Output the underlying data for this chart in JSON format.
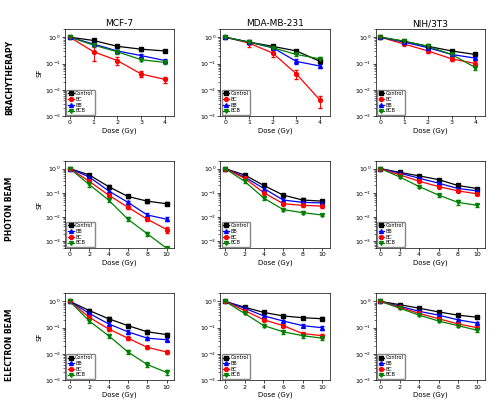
{
  "col_titles": [
    "MCF-7",
    "MDA-MB-231",
    "NIH/3T3"
  ],
  "row_titles": [
    "BRACHYTHERAPY",
    "PHOTON BEAM",
    "ELECTRON BEAM"
  ],
  "ylabel": "SF",
  "xlabel": "Dose (Gy)",
  "colors": {
    "Control": "black",
    "BC": "red",
    "BB": "blue",
    "BCB": "green"
  },
  "markers": {
    "Control": "s",
    "BC": "o",
    "BB": "^",
    "BCB": "v"
  },
  "brachytherapy": {
    "dose": [
      0,
      1,
      2,
      3,
      4
    ],
    "MCF7": {
      "Control": [
        1.0,
        0.75,
        0.45,
        0.35,
        0.3
      ],
      "BC": [
        1.0,
        0.28,
        0.13,
        0.04,
        0.025
      ],
      "BB": [
        1.0,
        0.55,
        0.3,
        0.2,
        0.13
      ],
      "BCB": [
        1.0,
        0.5,
        0.28,
        0.14,
        0.11
      ]
    },
    "MDA": {
      "Control": [
        1.0,
        0.65,
        0.45,
        0.3,
        0.12
      ],
      "BC": [
        1.0,
        0.6,
        0.25,
        0.04,
        0.004
      ],
      "BB": [
        1.0,
        0.65,
        0.4,
        0.12,
        0.08
      ],
      "BCB": [
        1.0,
        0.65,
        0.4,
        0.22,
        0.15
      ]
    },
    "NIH": {
      "Control": [
        1.0,
        0.7,
        0.45,
        0.3,
        0.22
      ],
      "BC": [
        1.0,
        0.55,
        0.3,
        0.15,
        0.1
      ],
      "BB": [
        1.0,
        0.65,
        0.4,
        0.22,
        0.16
      ],
      "BCB": [
        1.0,
        0.7,
        0.45,
        0.22,
        0.07
      ]
    },
    "MCF7_err": {
      "Control": [
        0.03,
        0.05,
        0.04,
        0.04,
        0.03
      ],
      "BC": [
        0.03,
        0.15,
        0.04,
        0.01,
        0.006
      ],
      "BB": [
        0.03,
        0.05,
        0.04,
        0.03,
        0.02
      ],
      "BCB": [
        0.03,
        0.05,
        0.04,
        0.02,
        0.015
      ]
    },
    "MDA_err": {
      "Control": [
        0.03,
        0.05,
        0.05,
        0.04,
        0.025
      ],
      "BC": [
        0.03,
        0.18,
        0.08,
        0.015,
        0.002
      ],
      "BB": [
        0.03,
        0.05,
        0.04,
        0.025,
        0.015
      ],
      "BCB": [
        0.03,
        0.05,
        0.04,
        0.03,
        0.025
      ]
    },
    "NIH_err": {
      "Control": [
        0.03,
        0.05,
        0.04,
        0.03,
        0.025
      ],
      "BC": [
        0.03,
        0.05,
        0.04,
        0.03,
        0.02
      ],
      "BB": [
        0.03,
        0.05,
        0.04,
        0.025,
        0.015
      ],
      "BCB": [
        0.03,
        0.05,
        0.04,
        0.025,
        0.012
      ]
    }
  },
  "photon": {
    "dose": [
      0,
      2,
      4,
      6,
      8,
      10
    ],
    "MCF7": {
      "Control": [
        1.0,
        0.55,
        0.18,
        0.07,
        0.045,
        0.035
      ],
      "BB": [
        1.0,
        0.45,
        0.12,
        0.04,
        0.012,
        0.008
      ],
      "BC": [
        1.0,
        0.3,
        0.08,
        0.025,
        0.008,
        0.003
      ],
      "BCB": [
        1.0,
        0.22,
        0.05,
        0.008,
        0.002,
        0.0005
      ]
    },
    "MDA": {
      "Control": [
        1.0,
        0.55,
        0.2,
        0.08,
        0.05,
        0.045
      ],
      "BB": [
        1.0,
        0.45,
        0.15,
        0.05,
        0.04,
        0.038
      ],
      "BC": [
        1.0,
        0.4,
        0.1,
        0.035,
        0.03,
        0.028
      ],
      "BCB": [
        1.0,
        0.3,
        0.06,
        0.02,
        0.015,
        0.012
      ]
    },
    "NIH": {
      "Control": [
        1.0,
        0.7,
        0.5,
        0.35,
        0.2,
        0.15
      ],
      "BB": [
        1.0,
        0.65,
        0.4,
        0.25,
        0.15,
        0.12
      ],
      "BC": [
        1.0,
        0.55,
        0.3,
        0.18,
        0.12,
        0.09
      ],
      "BCB": [
        1.0,
        0.45,
        0.18,
        0.08,
        0.04,
        0.03
      ]
    },
    "MCF7_err": {
      "Control": [
        0.03,
        0.06,
        0.025,
        0.008,
        0.006,
        0.005
      ],
      "BB": [
        0.03,
        0.05,
        0.018,
        0.006,
        0.002,
        0.0015
      ],
      "BC": [
        0.03,
        0.04,
        0.015,
        0.004,
        0.0015,
        0.0008
      ],
      "BCB": [
        0.03,
        0.04,
        0.01,
        0.0015,
        0.0004,
        8e-05
      ]
    },
    "MDA_err": {
      "Control": [
        0.03,
        0.05,
        0.03,
        0.012,
        0.008,
        0.006
      ],
      "BB": [
        0.03,
        0.04,
        0.022,
        0.008,
        0.006,
        0.005
      ],
      "BC": [
        0.03,
        0.04,
        0.015,
        0.005,
        0.005,
        0.004
      ],
      "BCB": [
        0.03,
        0.04,
        0.009,
        0.003,
        0.002,
        0.0015
      ]
    },
    "NIH_err": {
      "Control": [
        0.02,
        0.04,
        0.03,
        0.025,
        0.015,
        0.015
      ],
      "BB": [
        0.02,
        0.04,
        0.03,
        0.02,
        0.015,
        0.012
      ],
      "BC": [
        0.02,
        0.03,
        0.025,
        0.015,
        0.01,
        0.008
      ],
      "BCB": [
        0.02,
        0.03,
        0.025,
        0.012,
        0.008,
        0.005
      ]
    }
  },
  "electron": {
    "dose": [
      0,
      2,
      4,
      6,
      8,
      10
    ],
    "MCF7": {
      "Control": [
        1.0,
        0.45,
        0.22,
        0.12,
        0.07,
        0.055
      ],
      "BB": [
        1.0,
        0.35,
        0.14,
        0.07,
        0.04,
        0.035
      ],
      "BC": [
        1.0,
        0.25,
        0.09,
        0.04,
        0.018,
        0.012
      ],
      "BCB": [
        1.0,
        0.18,
        0.05,
        0.012,
        0.004,
        0.002
      ]
    },
    "MDA": {
      "Control": [
        1.0,
        0.6,
        0.38,
        0.28,
        0.24,
        0.22
      ],
      "BB": [
        1.0,
        0.55,
        0.28,
        0.18,
        0.12,
        0.1
      ],
      "BC": [
        1.0,
        0.45,
        0.2,
        0.12,
        0.06,
        0.05
      ],
      "BCB": [
        1.0,
        0.35,
        0.12,
        0.07,
        0.05,
        0.04
      ]
    },
    "NIH": {
      "Control": [
        1.0,
        0.75,
        0.55,
        0.4,
        0.3,
        0.25
      ],
      "BB": [
        1.0,
        0.65,
        0.42,
        0.3,
        0.2,
        0.15
      ],
      "BC": [
        1.0,
        0.6,
        0.35,
        0.22,
        0.14,
        0.1
      ],
      "BCB": [
        1.0,
        0.55,
        0.3,
        0.18,
        0.12,
        0.08
      ]
    },
    "MCF7_err": {
      "Control": [
        0.03,
        0.05,
        0.03,
        0.015,
        0.01,
        0.008
      ],
      "BB": [
        0.03,
        0.04,
        0.022,
        0.012,
        0.006,
        0.005
      ],
      "BC": [
        0.03,
        0.03,
        0.015,
        0.006,
        0.003,
        0.002
      ],
      "BCB": [
        0.03,
        0.03,
        0.009,
        0.002,
        0.0008,
        0.0004
      ]
    },
    "MDA_err": {
      "Control": [
        0.03,
        0.05,
        0.04,
        0.03,
        0.025,
        0.025
      ],
      "BB": [
        0.03,
        0.04,
        0.03,
        0.025,
        0.015,
        0.015
      ],
      "BC": [
        0.03,
        0.04,
        0.025,
        0.018,
        0.009,
        0.008
      ],
      "BCB": [
        0.03,
        0.03,
        0.018,
        0.012,
        0.008,
        0.006
      ]
    },
    "NIH_err": {
      "Control": [
        0.02,
        0.03,
        0.03,
        0.03,
        0.025,
        0.025
      ],
      "BB": [
        0.02,
        0.03,
        0.025,
        0.025,
        0.015,
        0.015
      ],
      "BC": [
        0.02,
        0.03,
        0.025,
        0.015,
        0.015,
        0.012
      ],
      "BCB": [
        0.02,
        0.03,
        0.025,
        0.015,
        0.012,
        0.01
      ]
    }
  },
  "brachytherapy_legend_order": [
    "Control",
    "BC",
    "BB",
    "BCB"
  ],
  "photon_legend_order": [
    "Control",
    "BB",
    "BC",
    "BCB"
  ],
  "electron_legend_order": [
    "Control",
    "BB",
    "BC",
    "BCB"
  ]
}
